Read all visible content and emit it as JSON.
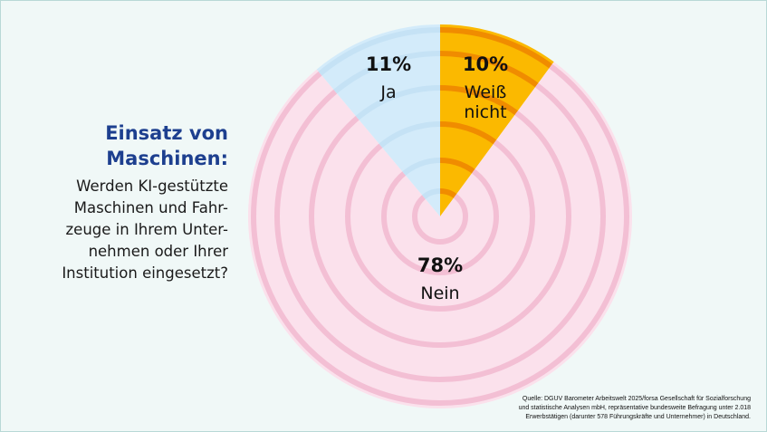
{
  "heading": {
    "title_lines": [
      "Einsatz von",
      "Maschinen:"
    ],
    "question_lines": [
      "Werden KI-gestützte",
      "Maschinen und Fahr-",
      "zeuge in Ihrem Unter-",
      "nehmen oder Ihrer",
      "Institution eingesetzt?"
    ]
  },
  "source": {
    "lines": [
      "Quelle: DGUV Barometer Arbeitswelt 2025/forsa Gesellschaft für Sozialforschung",
      "und statistische Analysen mbH, repräsentative bundesweite Befragung unter 2.018",
      "Erwerbstätigen (darunter 578 Führungskräfte und Unternehmer) in Deutschland."
    ]
  },
  "chart_data": {
    "type": "pie",
    "start": "top, clockwise",
    "slices": [
      {
        "label": "Weiß nicht",
        "label_lines": [
          "Weiß",
          "nicht"
        ],
        "value": 10,
        "pct_label": "10%",
        "color": "#fbb900",
        "ring_color": "#f08c00"
      },
      {
        "label": "Nein",
        "label_lines": [
          "Nein"
        ],
        "value": 78,
        "pct_label": "78%",
        "color": "#fbe1ec",
        "ring_color": "#f3bfd4"
      },
      {
        "label": "Ja",
        "label_lines": [
          "Ja"
        ],
        "value": 11,
        "pct_label": "11%",
        "color": "#d3ebfa",
        "ring_color": "#c5e2f5"
      }
    ]
  }
}
